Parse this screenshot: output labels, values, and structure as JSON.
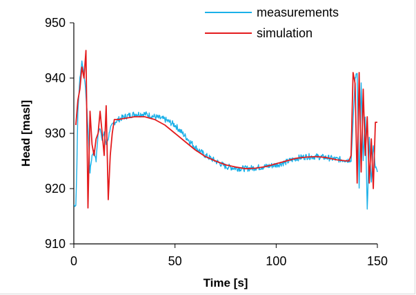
{
  "chart_data": {
    "type": "line",
    "xlabel": "Time [s]",
    "ylabel": "Head [masl]",
    "xlim": [
      0,
      150
    ],
    "ylim": [
      910,
      950
    ],
    "x_ticks": [
      0,
      50,
      100,
      150
    ],
    "y_ticks": [
      910,
      920,
      930,
      940,
      950
    ],
    "grid": false,
    "legend_position": "top-right",
    "series": [
      {
        "name": "measurements",
        "color": "#1ab0e8",
        "noisy": true,
        "x": [
          0,
          1,
          1.5,
          2,
          3,
          4,
          5,
          6,
          7,
          8,
          9,
          10,
          11,
          12,
          13,
          14,
          15,
          16,
          17,
          18,
          19,
          20,
          22,
          25,
          30,
          35,
          40,
          45,
          50,
          55,
          60,
          65,
          70,
          75,
          80,
          85,
          90,
          95,
          100,
          105,
          110,
          115,
          120,
          125,
          130,
          135,
          137,
          138,
          139,
          140,
          141,
          142,
          143,
          144,
          145,
          146,
          147,
          148,
          149,
          150
        ],
        "y": [
          917,
          917,
          924,
          934,
          940,
          943,
          941,
          937,
          931,
          923,
          926,
          927,
          925,
          930,
          931,
          929,
          930,
          928,
          929,
          931,
          931.5,
          932,
          932.5,
          933,
          933.5,
          933.5,
          933,
          932.5,
          931.5,
          929.5,
          927.5,
          926,
          925,
          924,
          923.7,
          923.6,
          923.8,
          924,
          924.3,
          924.8,
          925.5,
          925.8,
          925.8,
          925.6,
          925.3,
          925.2,
          925,
          932,
          940,
          941,
          920,
          939,
          925,
          933,
          916,
          929,
          921,
          928,
          924,
          923
        ]
      },
      {
        "name": "simulation",
        "color": "#e31a1c",
        "noisy": false,
        "x": [
          1,
          2,
          3,
          4,
          5,
          6,
          7,
          8,
          9,
          10,
          11,
          12,
          13,
          14,
          15,
          16,
          17,
          18,
          19,
          20,
          22,
          25,
          30,
          35,
          40,
          45,
          50,
          55,
          60,
          65,
          70,
          75,
          80,
          85,
          90,
          95,
          100,
          105,
          110,
          115,
          120,
          125,
          130,
          135,
          136,
          137,
          138,
          139,
          140,
          141,
          142,
          143,
          144,
          145,
          146,
          147,
          148,
          149,
          150
        ],
        "y": [
          931.5,
          936,
          938,
          942,
          940,
          945,
          916.5,
          934,
          928,
          926,
          929,
          930,
          934,
          930,
          926,
          935,
          918,
          926,
          930,
          932.5,
          932.5,
          932.7,
          933,
          933,
          932.5,
          931.5,
          930,
          928.5,
          927,
          925.8,
          925,
          924.3,
          923.9,
          923.6,
          923.7,
          924,
          924.5,
          925,
          925.5,
          925.7,
          925.8,
          925.6,
          925.2,
          925,
          925,
          926,
          941,
          939,
          921,
          941,
          923,
          938,
          926,
          933,
          921,
          929,
          920,
          932,
          932
        ]
      }
    ]
  }
}
